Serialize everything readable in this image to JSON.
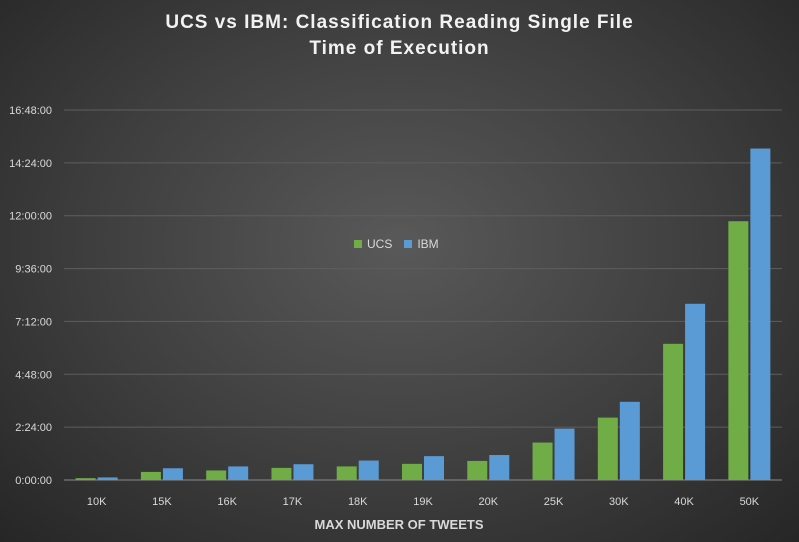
{
  "chart_data": {
    "type": "bar",
    "title_line1": "UCS vs IBM: Classification Reading Single File",
    "title_line2": "Time of Execution",
    "xlabel": "MAX NUMBER OF TWEETS",
    "ylabel": "",
    "categories": [
      "10K",
      "15K",
      "16K",
      "17K",
      "18K",
      "19K",
      "20K",
      "25K",
      "30K",
      "40K",
      "50K"
    ],
    "y_ticks": [
      {
        "label": "0:00:00",
        "value": 0
      },
      {
        "label": "2:24:00",
        "value": 144
      },
      {
        "label": "4:48:00",
        "value": 288
      },
      {
        "label": "7:12:00",
        "value": 432
      },
      {
        "label": "9:36:00",
        "value": 576
      },
      {
        "label": "12:00:00",
        "value": 720
      },
      {
        "label": "14:24:00",
        "value": 864
      },
      {
        "label": "16:48:00",
        "value": 1008
      }
    ],
    "y_unit": "minutes",
    "ylim": [
      0,
      1008
    ],
    "grid": true,
    "legend_position": "center",
    "series": [
      {
        "name": "UCS",
        "color": "#70ad47",
        "values": [
          5,
          22,
          26,
          33,
          37,
          44,
          52,
          102,
          170,
          371,
          705
        ]
      },
      {
        "name": "IBM",
        "color": "#5b9bd5",
        "values": [
          7,
          32,
          37,
          43,
          53,
          65,
          68,
          140,
          213,
          480,
          903
        ]
      }
    ]
  }
}
